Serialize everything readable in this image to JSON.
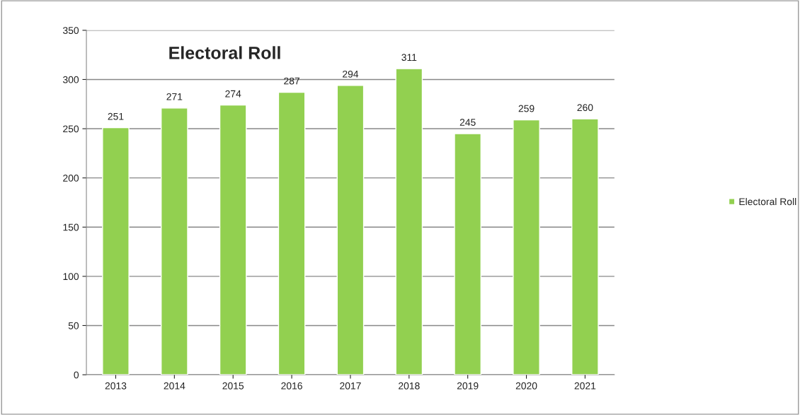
{
  "chart_data": {
    "type": "bar",
    "title": "Electoral Roll",
    "categories": [
      "2013",
      "2014",
      "2015",
      "2016",
      "2017",
      "2018",
      "2019",
      "2020",
      "2021"
    ],
    "series": [
      {
        "name": "Electoral Roll",
        "color": "#92d050",
        "values": [
          251,
          271,
          274,
          287,
          294,
          311,
          245,
          259,
          260
        ]
      }
    ],
    "ylim": [
      0,
      350
    ],
    "yticks": [
      0,
      50,
      100,
      150,
      200,
      250,
      300,
      350
    ],
    "grid": "y",
    "legend": "right",
    "data_labels": true
  }
}
